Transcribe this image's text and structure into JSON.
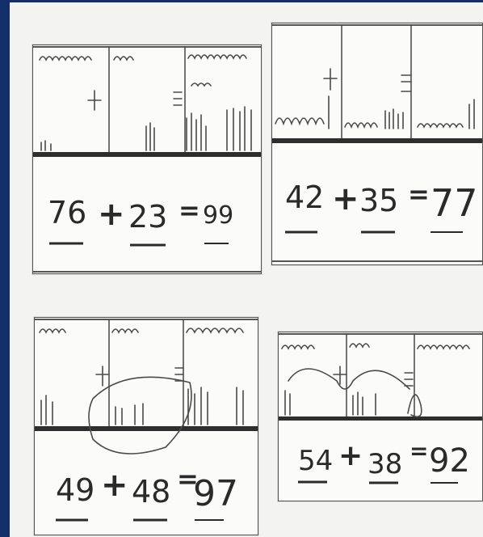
{
  "problems": [
    {
      "addend1": "76",
      "plus": "+",
      "addend2": "23",
      "equals": "=",
      "answer": "99"
    },
    {
      "addend1": "42",
      "plus": "+",
      "addend2": "35",
      "equals": "=",
      "answer": "77"
    },
    {
      "addend1": "49",
      "plus": "+",
      "addend2": "48",
      "equals": "=",
      "answer": "97"
    },
    {
      "addend1": "54",
      "plus": "+",
      "addend2": "38",
      "equals": "=",
      "answer": "92"
    }
  ],
  "colors": {
    "frame": "#14306a",
    "ink": "#2a2a2a",
    "paper": "#fbfbfa"
  }
}
